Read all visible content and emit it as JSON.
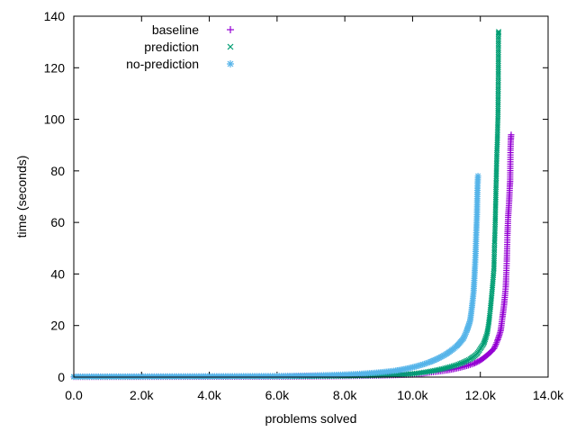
{
  "chart_data": {
    "type": "scatter",
    "xlabel": "problems solved",
    "ylabel": "time (seconds)",
    "xlim": [
      0,
      14000
    ],
    "ylim": [
      0,
      140
    ],
    "x_ticks": [
      0,
      2000,
      4000,
      6000,
      8000,
      10000,
      12000,
      14000
    ],
    "x_tick_labels": [
      "0.0",
      "2.0k",
      "4.0k",
      "6.0k",
      "8.0k",
      "10.0k",
      "12.0k",
      "14.0k"
    ],
    "y_ticks": [
      0,
      20,
      40,
      60,
      80,
      100,
      120,
      140
    ],
    "y_tick_labels": [
      "0",
      "20",
      "40",
      "60",
      "80",
      "100",
      "120",
      "140"
    ],
    "legend_position": "top-left",
    "series": [
      {
        "name": "baseline",
        "marker": "+",
        "color": "#9400d3",
        "points": [
          [
            0,
            0.1
          ],
          [
            6000,
            0.2
          ],
          [
            8000,
            0.4
          ],
          [
            9000,
            0.6
          ],
          [
            9500,
            0.8
          ],
          [
            10000,
            1.0
          ],
          [
            10500,
            1.8
          ],
          [
            11000,
            2.6
          ],
          [
            11500,
            4.0
          ],
          [
            11800,
            5.2
          ],
          [
            12000,
            6.5
          ],
          [
            12200,
            8.5
          ],
          [
            12400,
            11
          ],
          [
            12500,
            14
          ],
          [
            12600,
            18
          ],
          [
            12650,
            23
          ],
          [
            12700,
            28
          ],
          [
            12750,
            35
          ],
          [
            12780,
            45
          ],
          [
            12800,
            55
          ],
          [
            12820,
            62
          ],
          [
            12850,
            68
          ],
          [
            12870,
            74
          ],
          [
            12880,
            76
          ],
          [
            12890,
            88
          ],
          [
            12900,
            92
          ],
          [
            12910,
            94
          ]
        ]
      },
      {
        "name": "prediction",
        "marker": "x",
        "color": "#009e73",
        "points": [
          [
            0,
            0.1
          ],
          [
            6000,
            0.2
          ],
          [
            8000,
            0.4
          ],
          [
            9000,
            0.6
          ],
          [
            9500,
            0.9
          ],
          [
            10000,
            1.3
          ],
          [
            10500,
            2.2
          ],
          [
            11000,
            3.6
          ],
          [
            11400,
            5.2
          ],
          [
            11700,
            7.0
          ],
          [
            11900,
            9.0
          ],
          [
            12000,
            11
          ],
          [
            12100,
            13
          ],
          [
            12200,
            17
          ],
          [
            12250,
            21
          ],
          [
            12300,
            27
          ],
          [
            12350,
            34
          ],
          [
            12400,
            42
          ],
          [
            12420,
            52
          ],
          [
            12440,
            60
          ],
          [
            12450,
            66
          ],
          [
            12460,
            72
          ],
          [
            12470,
            77
          ],
          [
            12480,
            83
          ],
          [
            12490,
            88
          ],
          [
            12500,
            91
          ],
          [
            12510,
            97
          ],
          [
            12520,
            101
          ],
          [
            12530,
            116
          ],
          [
            12535,
            133
          ],
          [
            12540,
            134
          ]
        ]
      },
      {
        "name": "no-prediction",
        "marker": "*",
        "color": "#56b4e9",
        "points": [
          [
            0,
            0.2
          ],
          [
            6000,
            0.4
          ],
          [
            7000,
            0.6
          ],
          [
            8000,
            1.0
          ],
          [
            8500,
            1.3
          ],
          [
            9000,
            1.8
          ],
          [
            9500,
            2.5
          ],
          [
            10000,
            3.8
          ],
          [
            10500,
            5.8
          ],
          [
            11000,
            9.0
          ],
          [
            11300,
            12
          ],
          [
            11500,
            15
          ],
          [
            11600,
            18
          ],
          [
            11700,
            22
          ],
          [
            11750,
            27
          ],
          [
            11800,
            33
          ],
          [
            11830,
            40
          ],
          [
            11860,
            48
          ],
          [
            11880,
            56
          ],
          [
            11900,
            63
          ],
          [
            11910,
            70
          ],
          [
            11920,
            75
          ],
          [
            11930,
            78
          ]
        ]
      }
    ]
  }
}
